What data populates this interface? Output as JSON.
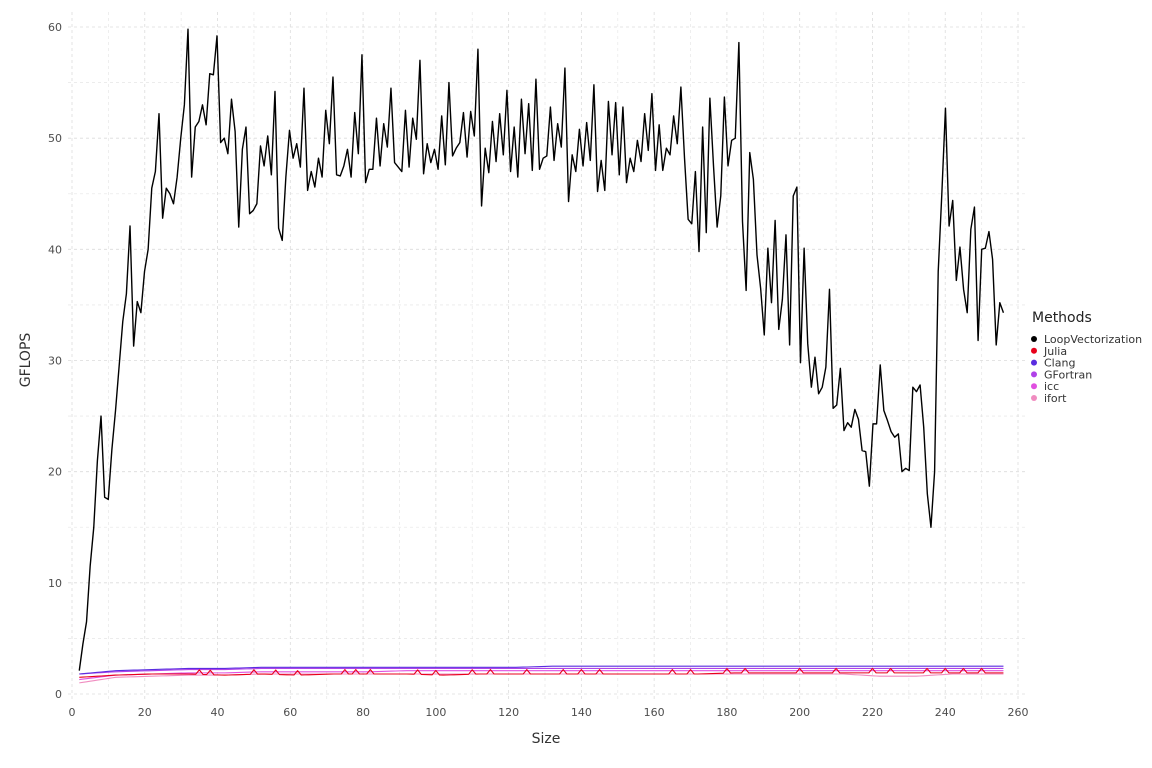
{
  "chart_data": {
    "type": "line",
    "title": "",
    "xlabel": "Size",
    "ylabel": "GFLOPS",
    "xlim": [
      0,
      260
    ],
    "ylim": [
      0,
      60
    ],
    "xticks": [
      0,
      20,
      40,
      60,
      80,
      100,
      120,
      140,
      160,
      180,
      200,
      220,
      240,
      260
    ],
    "yticks": [
      0,
      10,
      20,
      30,
      40,
      50,
      60
    ],
    "grid": true,
    "legend": {
      "title": "Methods",
      "position": "right"
    },
    "x_start": 2,
    "x_end": 256,
    "series": [
      {
        "name": "LoopVectorization",
        "color": "#000000",
        "values": [
          2.1,
          4.5,
          6.5,
          11.5,
          15,
          21,
          25,
          17.7,
          17.5,
          22,
          25.5,
          29.5,
          33.5,
          36,
          42.1,
          31.3,
          35.3,
          34.3,
          38,
          40,
          45.5,
          47,
          52.2,
          42.8,
          45.5,
          45,
          44.1,
          46.5,
          50,
          53,
          59.8,
          46.5,
          51,
          51.5,
          53,
          51.2,
          55.8,
          55.7,
          59.2,
          49.6,
          50,
          48.6,
          53.5,
          50.6,
          42,
          49,
          51,
          43.2,
          43.5,
          44.1,
          49.3,
          47.5,
          50.2,
          46.7,
          54.2,
          41.9,
          40.8,
          46.5,
          50.7,
          48.2,
          49.5,
          47.4,
          54.5,
          45.3,
          47,
          45.6,
          48.2,
          46.5,
          52.5,
          49.5,
          55.5,
          46.7,
          46.6,
          47.5,
          49,
          46.5,
          52.3,
          48.6,
          57.5,
          46,
          47.2,
          47.2,
          51.8,
          47.5,
          51.3,
          49.2,
          54.5,
          47.8,
          47.4,
          47,
          52.5,
          47.4,
          51.8,
          49.9,
          57,
          46.8,
          49.5,
          47.8,
          49,
          47.2,
          52,
          47.6,
          55,
          48.4,
          49.1,
          49.6,
          52.3,
          48.3,
          52.4,
          50.2,
          58,
          43.9,
          49.1,
          46.9,
          51.5,
          47.9,
          52.2,
          48.5,
          54.3,
          47,
          51,
          46.5,
          53.5,
          48.6,
          53.1,
          47.1,
          55.3,
          47.2,
          48.2,
          48.4,
          52.8,
          48,
          51.3,
          49.2,
          56.3,
          44.3,
          48.5,
          47,
          50.8,
          47.5,
          51.4,
          48,
          54.8,
          45.2,
          48,
          45.3,
          53.3,
          48.5,
          53.2,
          46.7,
          52.8,
          46,
          48.2,
          47,
          49.8,
          47.9,
          52.2,
          48.9,
          54,
          47.1,
          51.2,
          47.1,
          49.1,
          48.5,
          52,
          49.5,
          54.6,
          48.2,
          42.7,
          42.3,
          47,
          39.8,
          51,
          41.5,
          53.6,
          47.5,
          42,
          44.8,
          53.7,
          47.5,
          49.8,
          50,
          58.6,
          42.5,
          36.3,
          48.7,
          46.3,
          39.5,
          36.5,
          32.3,
          40.1,
          35.2,
          42.6,
          32.8,
          35.5,
          41.3,
          31.4,
          44.8,
          45.6,
          29.8,
          40.1,
          31.5,
          27.6,
          30.3,
          27,
          27.6,
          29.4,
          36.4,
          25.7,
          26,
          29.3,
          23.7,
          24.4,
          24,
          25.6,
          24.7,
          21.9,
          21.8,
          18.7,
          24.3,
          24.3,
          29.6,
          25.5,
          24.6,
          23.6,
          23.1,
          23.4,
          20,
          20.3,
          20.1,
          27.6,
          27.2,
          27.8,
          24,
          18,
          15,
          20,
          38,
          45,
          52.7,
          42.1,
          44.4,
          37.2,
          40.2,
          36.4,
          34.3,
          41.8,
          43.8,
          31.8,
          40,
          40.1,
          41.6,
          39.1,
          31.4,
          35.2,
          34.3
        ]
      },
      {
        "name": "Julia",
        "color": "#e8001b",
        "base": [
          1.5,
          1.7,
          1.8,
          1.8,
          1.7,
          1.8,
          1.7,
          1.8,
          1.8,
          1.8,
          1.7,
          1.8,
          1.8,
          1.8,
          1.8,
          1.8,
          1.8,
          1.8,
          1.9,
          1.9,
          1.9,
          1.9,
          1.9,
          1.9,
          1.9,
          1.9
        ],
        "spikes": [
          35,
          38,
          50,
          56,
          62,
          75,
          78,
          82,
          95,
          100,
          110,
          115,
          125,
          135,
          140,
          145,
          165,
          170,
          180,
          185,
          200,
          210,
          220,
          225,
          235,
          240,
          245,
          250
        ]
      },
      {
        "name": "Clang",
        "color": "#5a2de0",
        "base": [
          1.8,
          2.1,
          2.2,
          2.3,
          2.3,
          2.4,
          2.4,
          2.4,
          2.4,
          2.4,
          2.4,
          2.4,
          2.4,
          2.5,
          2.5,
          2.5,
          2.5,
          2.5,
          2.5,
          2.5,
          2.5,
          2.5,
          2.5,
          2.5,
          2.5,
          2.5
        ]
      },
      {
        "name": "GFortran",
        "color": "#b042e8",
        "base": [
          1.8,
          2.0,
          2.1,
          2.2,
          2.2,
          2.3,
          2.3,
          2.3,
          2.3,
          2.3,
          2.3,
          2.3,
          2.3,
          2.3,
          2.3,
          2.3,
          2.3,
          2.3,
          2.3,
          2.3,
          2.3,
          2.3,
          2.3,
          2.3,
          2.3,
          2.3
        ]
      },
      {
        "name": "icc",
        "color": "#e050e0",
        "base": [
          1.3,
          1.7,
          1.8,
          1.9,
          1.9,
          2.0,
          2.0,
          2.0,
          2.0,
          2.1,
          2.1,
          2.1,
          2.1,
          2.1,
          2.1,
          2.1,
          2.1,
          2.1,
          2.1,
          2.1,
          2.1,
          2.1,
          2.1,
          2.1,
          2.1,
          2.1
        ]
      },
      {
        "name": "ifort",
        "color": "#f08cc0",
        "base": [
          1.0,
          1.5,
          1.6,
          1.7,
          1.7,
          1.8,
          1.8,
          1.8,
          1.8,
          1.8,
          1.8,
          1.8,
          1.8,
          1.8,
          1.8,
          1.8,
          1.8,
          1.8,
          1.8,
          1.8,
          1.8,
          1.8,
          1.6,
          1.6,
          1.8,
          1.8
        ]
      }
    ]
  }
}
